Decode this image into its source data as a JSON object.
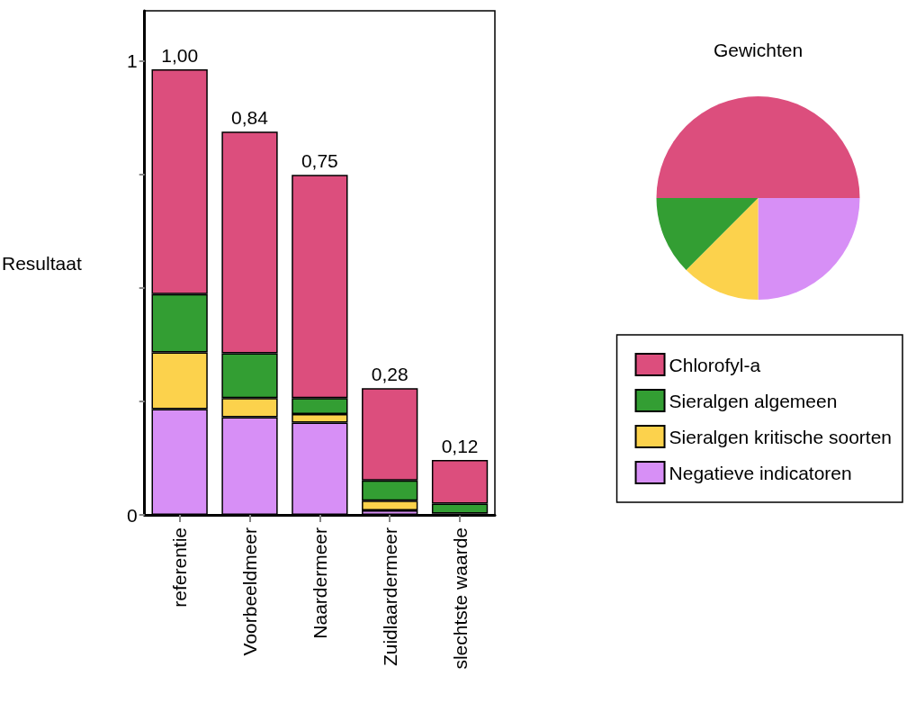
{
  "chart_data": [
    {
      "type": "bar",
      "ylabel": "Resultaat",
      "stacked": true,
      "categories": [
        "referentie",
        "Voorbeeldmeer",
        "Naardermeer",
        "Zuidlaardermeer",
        "slechtste waarde"
      ],
      "series": [
        {
          "name": "Negatieve indicatoren",
          "color": "#d78ff6",
          "values": [
            0.233,
            0.215,
            0.203,
            0.01,
            0
          ]
        },
        {
          "name": "Sieralgen kritische soorten",
          "color": "#fcd24c",
          "values": [
            0.125,
            0.042,
            0.019,
            0.021,
            0.003
          ]
        },
        {
          "name": "Sieralgen algemeen",
          "color": "#339e33",
          "values": [
            0.128,
            0.099,
            0.035,
            0.045,
            0.022
          ]
        },
        {
          "name": "Chlorofyl-a",
          "color": "#dc4e7d",
          "values": [
            0.495,
            0.488,
            0.492,
            0.203,
            0.096
          ]
        }
      ],
      "totals": [
        "1,00",
        "0,84",
        "0,75",
        "0,28",
        "0,12"
      ],
      "ylim": [
        0,
        1.11
      ],
      "yticks": [
        0,
        {
          "value": 0.25,
          "label": null
        },
        {
          "value": 0.5,
          "label": null
        },
        {
          "value": 0.75,
          "label": null
        },
        1
      ],
      "grid": false,
      "legend": "right"
    },
    {
      "type": "pie",
      "title": "Gewichten",
      "categories": [
        null,
        null,
        null,
        null
      ],
      "values": [
        50,
        25,
        12.5,
        12.5
      ],
      "colors": [
        "#dc4e7d",
        "#d78ff6",
        "#fcd24c",
        "#339e33"
      ],
      "legend": false
    }
  ]
}
